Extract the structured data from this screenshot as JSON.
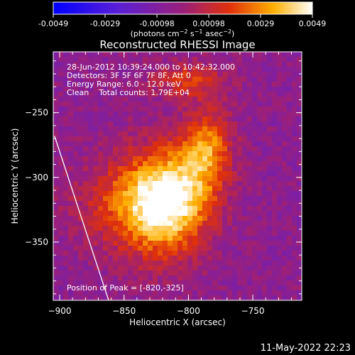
{
  "colorbar": {
    "ticks": [
      "-0.0049",
      "-0.0029",
      "-0.00098",
      "0.00098",
      "0.0029",
      "0.0049"
    ],
    "unit_base": "(photons cm",
    "unit_exp1": "−2",
    "unit_mid": " s",
    "unit_exp2": "−1",
    "unit_tail": " asec",
    "unit_exp3": "−2",
    "unit_close": ")"
  },
  "info": {
    "time": "28-Jun-2012 10:39:24.000 to 10:42:32.000",
    "detectors": "Detectors: 3F 5F 6F 7F 8F, Att 0",
    "energy": "Energy Range: 6.0 - 12.0 keV",
    "clean": "Clean    Total counts: 1.79E+04",
    "peak": "Position of Peak = [-820,-325]"
  },
  "footer": {
    "timestamp": "11-May-2022 22:23"
  },
  "chart_data": {
    "type": "heatmap",
    "title": "Reconstructed RHESSI Image",
    "xlabel": "Heliocentric X (arcsec)",
    "ylabel": "Heliocentric Y (arcsec)",
    "xlim": [
      -905,
      -712
    ],
    "ylim": [
      -395,
      -203
    ],
    "xticks": [
      -900,
      -850,
      -800,
      -750
    ],
    "yticks": [
      -250,
      -300,
      -350
    ],
    "xtick_labels": [
      "−900",
      "−850",
      "−800",
      "−750"
    ],
    "ytick_labels": [
      "−250",
      "−300",
      "−350"
    ],
    "color_range": [
      -0.0049,
      0.0049
    ],
    "colors": {
      "low": "#0000ff",
      "mid": "#7a1fa8",
      "high": "#ffffff"
    },
    "limb_line": [
      [
        -904,
        -268
      ],
      [
        -862,
        -395
      ]
    ],
    "peak": [
      -820,
      -325
    ],
    "sources": [
      {
        "x": -820,
        "y": -320,
        "sx": 22,
        "sy": 28,
        "amp": 1.0
      },
      {
        "x": -785,
        "y": -275,
        "sx": 13,
        "sy": 20,
        "amp": 0.55
      },
      {
        "x": -800,
        "y": -225,
        "sx": 20,
        "sy": 10,
        "amp": 0.4
      },
      {
        "x": -855,
        "y": -320,
        "sx": 26,
        "sy": 24,
        "amp": 0.35
      },
      {
        "x": -795,
        "y": -305,
        "sx": 18,
        "sy": 25,
        "amp": 0.3
      }
    ]
  }
}
